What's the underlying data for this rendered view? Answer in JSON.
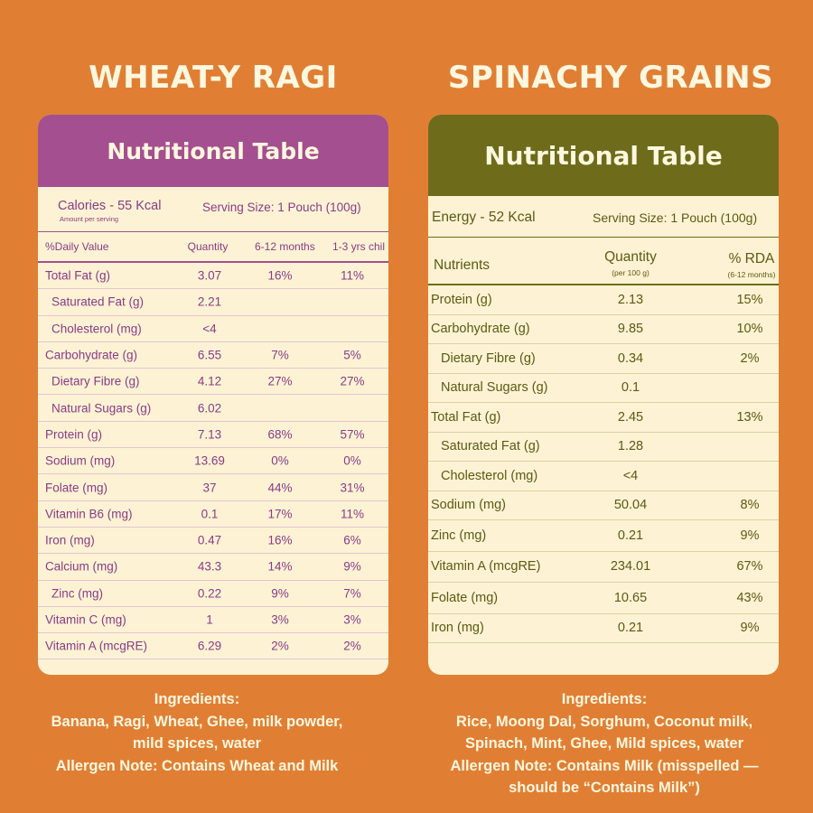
{
  "left": {
    "title": "WHEAT-Y RAGI",
    "table_title": "Nutritional Table",
    "calories": "Calories - 55 Kcal",
    "amount_note": "Amount per serving",
    "serving": "Serving Size: 1 Pouch (100g)",
    "headers": [
      "%Daily Value",
      "Quantity",
      "6-12 months",
      "1-3 yrs chil"
    ],
    "rows": [
      {
        "name": "Total Fat (g)",
        "qty": "3.07",
        "a": "16%",
        "b": "11%",
        "indent": false
      },
      {
        "name": "Saturated Fat (g)",
        "qty": "2.21",
        "a": "",
        "b": "",
        "indent": true
      },
      {
        "name": "Cholesterol (mg)",
        "qty": "<4",
        "a": "",
        "b": "",
        "indent": true
      },
      {
        "name": "Carbohydrate (g)",
        "qty": "6.55",
        "a": "7%",
        "b": "5%",
        "indent": false
      },
      {
        "name": "Dietary Fibre (g)",
        "qty": "4.12",
        "a": "27%",
        "b": "27%",
        "indent": true
      },
      {
        "name": "Natural Sugars (g)",
        "qty": "6.02",
        "a": "",
        "b": "",
        "indent": true
      },
      {
        "name": "Protein (g)",
        "qty": "7.13",
        "a": "68%",
        "b": "57%",
        "indent": false
      },
      {
        "name": "Sodium (mg)",
        "qty": "13.69",
        "a": "0%",
        "b": "0%",
        "indent": false
      },
      {
        "name": "Folate (mg)",
        "qty": "37",
        "a": "44%",
        "b": "31%",
        "indent": false
      },
      {
        "name": "Vitamin B6 (mg)",
        "qty": "0.1",
        "a": "17%",
        "b": "11%",
        "indent": false
      },
      {
        "name": "Iron (mg)",
        "qty": "0.47",
        "a": "16%",
        "b": "6%",
        "indent": false
      },
      {
        "name": "Calcium (mg)",
        "qty": "43.3",
        "a": "14%",
        "b": "9%",
        "indent": false
      },
      {
        "name": "Zinc (mg)",
        "qty": "0.22",
        "a": "9%",
        "b": "7%",
        "indent": true
      },
      {
        "name": "Vitamin C (mg)",
        "qty": "1",
        "a": "3%",
        "b": "3%",
        "indent": false
      },
      {
        "name": "Vitamin A (mcgRE)",
        "qty": "6.29",
        "a": "2%",
        "b": "2%",
        "indent": false
      }
    ],
    "notes": [
      "Ingredients:",
      "Banana, Ragi, Wheat, Ghee, milk powder,",
      "mild spices, water",
      "Allergen Note: Contains Wheat and Milk"
    ]
  },
  "right": {
    "title": "SPINACHY GRAINS",
    "table_title": "Nutritional Table",
    "energy": "Energy - 52 Kcal",
    "serving": "Serving Size: 1 Pouch (100g)",
    "headers": [
      "Nutrients",
      "Quantity",
      "% RDA"
    ],
    "header_subs": [
      "(per 100 g)",
      "(6-12 months)"
    ],
    "rows": [
      {
        "name": "Protein (g)",
        "qty": "2.13",
        "rda": "15%",
        "indent": false
      },
      {
        "name": "Carbohydrate (g)",
        "qty": "9.85",
        "rda": "10%",
        "indent": false
      },
      {
        "name": "Dietary Fibre (g)",
        "qty": "0.34",
        "rda": "2%",
        "indent": true
      },
      {
        "name": "Natural Sugars (g)",
        "qty": "0.1",
        "rda": "",
        "indent": true
      },
      {
        "name": "Total Fat (g)",
        "qty": "2.45",
        "rda": "13%",
        "indent": false
      },
      {
        "name": "Saturated Fat (g)",
        "qty": "1.28",
        "rda": "",
        "indent": true
      },
      {
        "name": "Cholesterol (mg)",
        "qty": "<4",
        "rda": "",
        "indent": true
      },
      {
        "name": "Sodium (mg)",
        "qty": "50.04",
        "rda": "8%",
        "indent": false
      },
      {
        "name": "Zinc (mg)",
        "qty": "0.21",
        "rda": "9%",
        "indent": false,
        "tall": true
      },
      {
        "name": "Vitamin A (mcgRE)",
        "qty": "234.01",
        "rda": "67%",
        "indent": false,
        "tall": true
      },
      {
        "name": "Folate (mg)",
        "qty": "10.65",
        "rda": "43%",
        "indent": false,
        "tall": true
      },
      {
        "name": "Iron (mg)",
        "qty": "0.21",
        "rda": "9%",
        "indent": false
      }
    ],
    "notes": [
      "Ingredients:",
      "Rice, Moong Dal, Sorghum, Coconut milk,",
      "Spinach, Mint, Ghee, Mild spices, water",
      "Allergen Note: Contains Milk (misspelled —",
      "should be “Contains Milk”)"
    ]
  }
}
